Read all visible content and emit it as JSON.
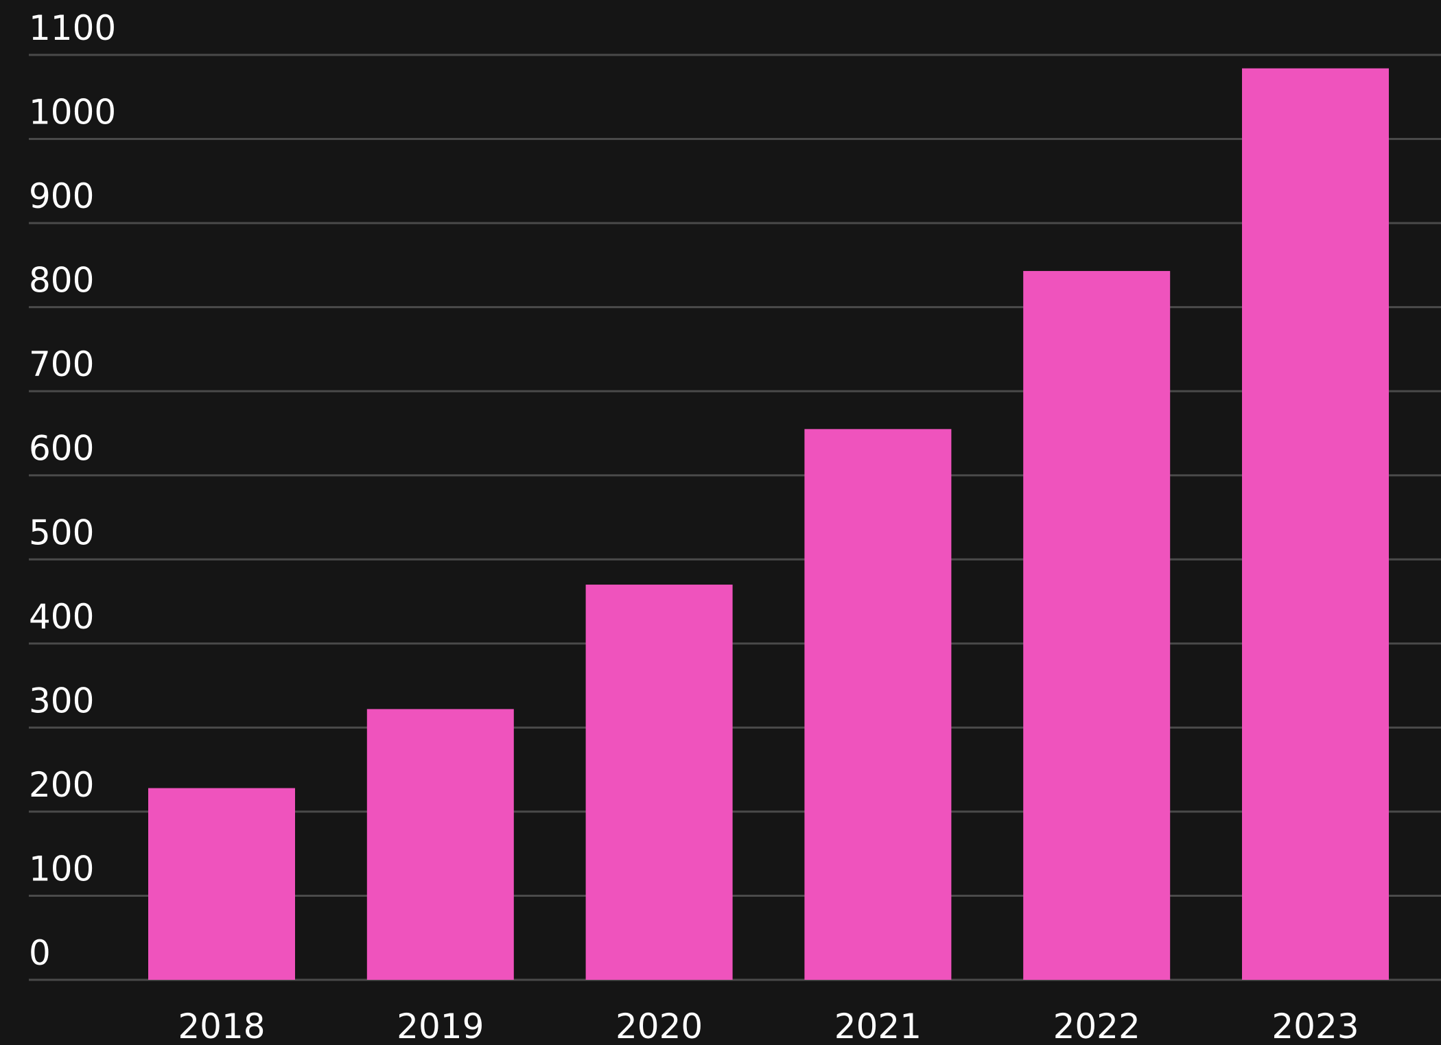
{
  "chart_data": {
    "type": "bar",
    "categories": [
      "2018",
      "2019",
      "2020",
      "2021",
      "2022",
      "2023"
    ],
    "values": [
      228,
      322,
      470,
      655,
      843,
      1084
    ],
    "ylim": [
      0,
      1100
    ],
    "y_ticks": [
      0,
      100,
      200,
      300,
      400,
      500,
      600,
      700,
      800,
      900,
      1000,
      1100
    ],
    "y_tick_labels": [
      "0",
      "100",
      "200",
      "300",
      "400",
      "500",
      "600",
      "700",
      "800",
      "900",
      "1000",
      "1100"
    ],
    "title": "",
    "xlabel": "",
    "ylabel": "",
    "grid": true,
    "legend": "none",
    "colors": {
      "background": "#151515",
      "bar": "#ef53bd",
      "grid": "#4a4a4a",
      "text": "#ffffff"
    }
  }
}
